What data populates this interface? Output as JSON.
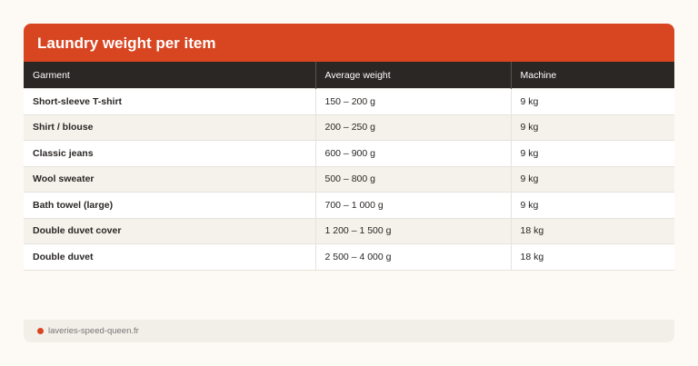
{
  "title": "Laundry weight per item",
  "columns": [
    "Garment",
    "Average weight",
    "Machine"
  ],
  "rows": [
    [
      "Short-sleeve T-shirt",
      "150 – 200 g",
      "9 kg"
    ],
    [
      "Shirt / blouse",
      "200 – 250 g",
      "9 kg"
    ],
    [
      "Classic jeans",
      "600 – 900 g",
      "9 kg"
    ],
    [
      "Wool sweater",
      "500 – 800 g",
      "9 kg"
    ],
    [
      "Bath towel (large)",
      "700 – 1 000 g",
      "9 kg"
    ],
    [
      "Double duvet cover",
      "1 200 – 1 500 g",
      "18 kg"
    ],
    [
      "Double duvet",
      "2 500 – 4 000 g",
      "18 kg"
    ]
  ],
  "footer": {
    "source": "laveries-speed-queen.fr",
    "icon": "dot-icon"
  },
  "colors": {
    "accent": "#d84521",
    "header": "#2a2725",
    "background": "#fdf9f5"
  }
}
